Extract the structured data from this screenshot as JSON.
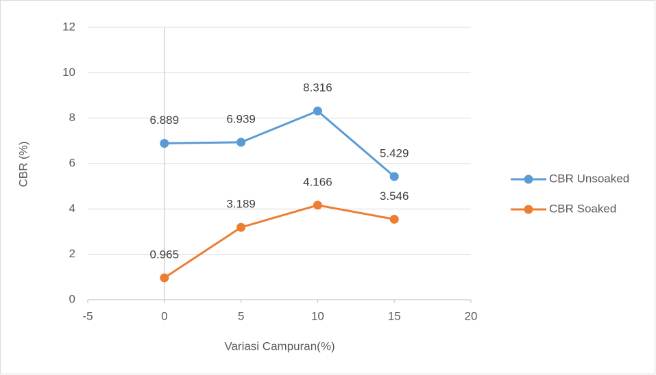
{
  "chart_data": {
    "type": "line",
    "x_label": "Variasi Campuran(%)",
    "y_label": "CBR (%)",
    "x": [
      0,
      5,
      10,
      15
    ],
    "series": [
      {
        "name": "CBR Unsoaked",
        "color": "#5b9bd5",
        "values": [
          6.889,
          6.939,
          8.316,
          5.429
        ]
      },
      {
        "name": "CBR Soaked",
        "color": "#ed7d31",
        "values": [
          0.965,
          3.189,
          4.166,
          3.546
        ]
      }
    ],
    "xlim": [
      -5,
      20
    ],
    "xticks": [
      -5,
      0,
      5,
      10,
      15,
      20
    ],
    "ylim": [
      0,
      12
    ],
    "yticks": [
      0,
      2,
      4,
      6,
      8,
      10,
      12
    ],
    "grid": true,
    "legend": "right"
  }
}
